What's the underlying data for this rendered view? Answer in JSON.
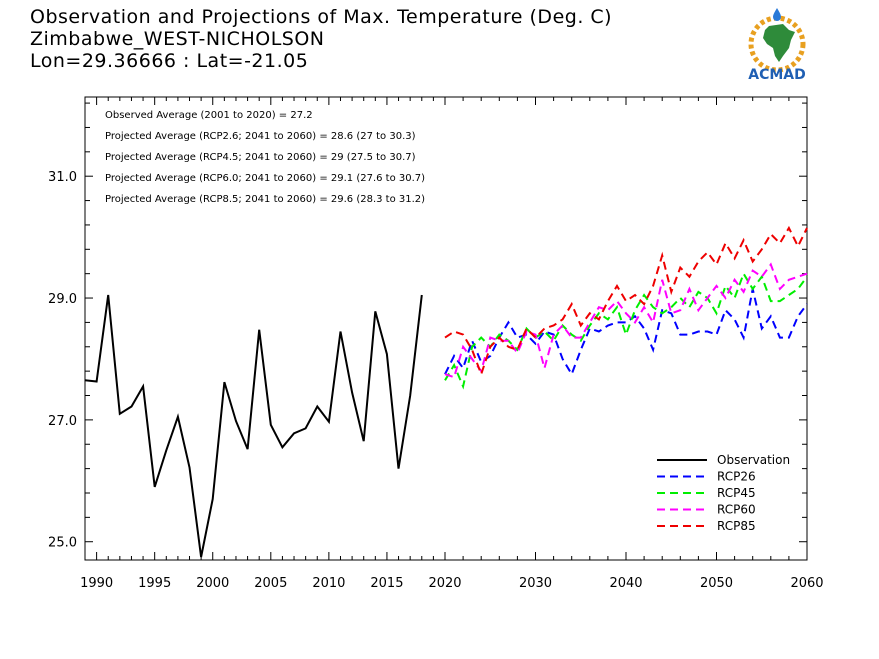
{
  "header": {
    "title": "Observation and Projections of Max. Temperature (Deg. C)",
    "station": "Zimbabwe_WEST-NICHOLSON",
    "coords": "Lon=29.36666 : Lat=-21.05"
  },
  "logo": {
    "text": "ACMAD",
    "colors": {
      "africa": "#2e8b3a",
      "ring": "#e8a020",
      "text": "#1f5fb3",
      "drop": "#2a7ad8"
    }
  },
  "chart_data": {
    "type": "line",
    "annotations": [
      "Observed Average (2001 to 2020) = 27.2",
      "Projected Average (RCP2.6; 2041 to 2060) = 28.6 (27 to 30.3)",
      "Projected Average (RCP4.5; 2041 to 2060) = 29 (27.5 to 30.7)",
      "Projected Average (RCP6.0; 2041 to 2060) = 29.1 (27.6 to 30.7)",
      "Projected Average (RCP8.5; 2041 to 2060) = 29.6 (28.3 to 31.2)"
    ],
    "y_ticks": [
      25.0,
      27.0,
      29.0,
      31.0
    ],
    "y_tick_labels": [
      "25.0",
      "27.0",
      "29.0",
      "31.0"
    ],
    "ylim": [
      24.7,
      32.3
    ],
    "x_ticks_left": [
      1990,
      1995,
      2000,
      2005,
      2010,
      2015,
      2020
    ],
    "x_ticks_right": [
      2020,
      2030,
      2040,
      2050,
      2060
    ],
    "x_tick_labels": [
      "1990",
      "1995",
      "2000",
      "2005",
      "2010",
      "2015",
      "2020",
      "2030",
      "2040",
      "2050",
      "2060"
    ],
    "x_segments": [
      {
        "from": 1989,
        "to": 2020
      },
      {
        "from": 2020,
        "to": 2060
      }
    ],
    "series": [
      {
        "name": "Observation",
        "color": "#000000",
        "dashed": false,
        "x": [
          1989,
          1990,
          1991,
          1992,
          1993,
          1994,
          1995,
          1996,
          1997,
          1998,
          1999,
          2000,
          2001,
          2002,
          2003,
          2004,
          2005,
          2006,
          2007,
          2008,
          2009,
          2010,
          2011,
          2012,
          2013,
          2014,
          2015,
          2016,
          2017,
          2018,
          2019,
          2020
        ],
        "values": [
          27.65,
          27.63,
          29.05,
          27.1,
          27.22,
          27.55,
          25.9,
          26.5,
          27.05,
          26.22,
          24.75,
          25.7,
          27.62,
          26.98,
          26.52,
          28.48,
          26.92,
          26.55,
          26.78,
          26.86,
          27.22,
          26.97,
          28.45,
          27.45,
          26.65,
          28.78,
          28.08,
          26.2,
          27.4,
          29.05,
          null,
          null
        ],
        "x_obs_end": 2020
      },
      {
        "name": "RCP26",
        "color": "#0000ff",
        "dashed": true,
        "x": [
          2020,
          2021,
          2022,
          2023,
          2024,
          2025,
          2026,
          2027,
          2028,
          2029,
          2030,
          2031,
          2032,
          2033,
          2034,
          2035,
          2036,
          2037,
          2038,
          2039,
          2040,
          2041,
          2042,
          2043,
          2044,
          2045,
          2046,
          2047,
          2048,
          2049,
          2050,
          2051,
          2052,
          2053,
          2054,
          2055,
          2056,
          2057,
          2058,
          2059,
          2060
        ],
        "values": [
          27.75,
          28.05,
          27.85,
          28.3,
          27.95,
          28.05,
          28.35,
          28.6,
          28.35,
          28.4,
          28.25,
          28.45,
          28.4,
          28.0,
          27.75,
          28.15,
          28.5,
          28.45,
          28.55,
          28.6,
          28.6,
          28.7,
          28.5,
          28.15,
          28.8,
          28.75,
          28.4,
          28.4,
          28.45,
          28.45,
          28.4,
          28.8,
          28.65,
          28.35,
          29.15,
          28.5,
          28.7,
          28.35,
          28.35,
          28.7,
          28.9
        ]
      },
      {
        "name": "RCP45",
        "color": "#00ee00",
        "dashed": true,
        "x": [
          2020,
          2021,
          2022,
          2023,
          2024,
          2025,
          2026,
          2027,
          2028,
          2029,
          2030,
          2031,
          2032,
          2033,
          2034,
          2035,
          2036,
          2037,
          2038,
          2039,
          2040,
          2041,
          2042,
          2043,
          2044,
          2045,
          2046,
          2047,
          2048,
          2049,
          2050,
          2051,
          2052,
          2053,
          2054,
          2055,
          2056,
          2057,
          2058,
          2059,
          2060
        ],
        "values": [
          27.65,
          27.9,
          27.55,
          28.2,
          28.35,
          28.2,
          28.4,
          28.3,
          28.15,
          28.5,
          28.35,
          28.45,
          28.3,
          28.55,
          28.4,
          28.3,
          28.55,
          28.75,
          28.65,
          28.85,
          28.4,
          28.8,
          29.05,
          28.85,
          28.75,
          28.85,
          29.0,
          28.85,
          29.1,
          29.0,
          28.75,
          29.2,
          29.0,
          29.4,
          29.15,
          29.35,
          28.95,
          28.95,
          29.05,
          29.15,
          29.35
        ]
      },
      {
        "name": "RCP60",
        "color": "#ff00ff",
        "dashed": true,
        "x": [
          2020,
          2021,
          2022,
          2023,
          2024,
          2025,
          2026,
          2027,
          2028,
          2029,
          2030,
          2031,
          2032,
          2033,
          2034,
          2035,
          2036,
          2037,
          2038,
          2039,
          2040,
          2041,
          2042,
          2043,
          2044,
          2045,
          2046,
          2047,
          2048,
          2049,
          2050,
          2051,
          2052,
          2053,
          2054,
          2055,
          2056,
          2057,
          2058,
          2059,
          2060
        ],
        "values": [
          27.75,
          27.7,
          28.2,
          28.0,
          27.8,
          28.35,
          28.3,
          28.3,
          28.1,
          28.45,
          28.4,
          27.85,
          28.4,
          28.55,
          28.35,
          28.35,
          28.6,
          28.85,
          28.8,
          28.95,
          28.75,
          28.6,
          28.85,
          28.6,
          29.3,
          28.75,
          28.8,
          29.15,
          28.8,
          29.0,
          29.2,
          29.0,
          29.3,
          29.1,
          29.45,
          29.35,
          29.55,
          29.15,
          29.3,
          29.35,
          29.4
        ]
      },
      {
        "name": "RCP85",
        "color": "#ee0000",
        "dashed": true,
        "x": [
          2020,
          2021,
          2022,
          2023,
          2024,
          2025,
          2026,
          2027,
          2028,
          2029,
          2030,
          2031,
          2032,
          2033,
          2034,
          2035,
          2036,
          2037,
          2038,
          2039,
          2040,
          2041,
          2042,
          2043,
          2044,
          2045,
          2046,
          2047,
          2048,
          2049,
          2050,
          2051,
          2052,
          2053,
          2054,
          2055,
          2056,
          2057,
          2058,
          2059,
          2060
        ],
        "values": [
          28.35,
          28.45,
          28.4,
          28.15,
          27.75,
          28.2,
          28.35,
          28.2,
          28.15,
          28.5,
          28.35,
          28.5,
          28.55,
          28.65,
          28.9,
          28.55,
          28.75,
          28.65,
          28.95,
          29.2,
          28.95,
          29.05,
          28.9,
          29.2,
          29.7,
          29.1,
          29.5,
          29.35,
          29.6,
          29.75,
          29.55,
          29.9,
          29.65,
          29.95,
          29.6,
          29.8,
          30.05,
          29.9,
          30.15,
          29.85,
          30.15
        ]
      }
    ],
    "legend": {
      "placement": "bottom-right",
      "entries": [
        "Observation",
        "RCP26",
        "RCP45",
        "RCP60",
        "RCP85"
      ]
    }
  }
}
